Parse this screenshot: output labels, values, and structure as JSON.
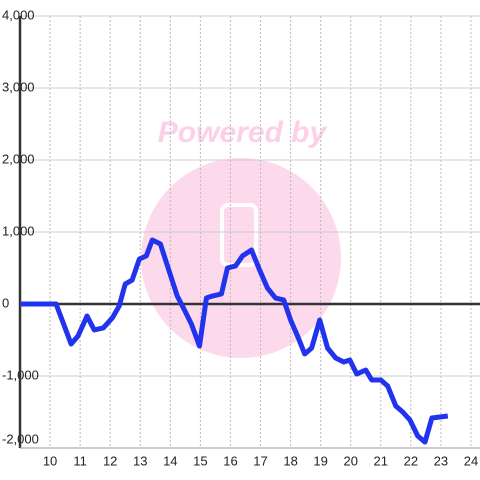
{
  "chart_data": {
    "type": "line",
    "watermark": "Powered by",
    "x": [
      9,
      10.2,
      10.7,
      10.93,
      11.23,
      11.47,
      11.77,
      12.07,
      12.3,
      12.5,
      12.73,
      12.97,
      13.2,
      13.4,
      13.67,
      13.97,
      14.23,
      14.47,
      14.7,
      14.97,
      15.2,
      15.4,
      15.7,
      15.9,
      16.17,
      16.4,
      16.7,
      16.97,
      17.23,
      17.5,
      17.77,
      18,
      18.23,
      18.47,
      18.7,
      18.97,
      19.23,
      19.5,
      19.77,
      19.97,
      20.2,
      20.5,
      20.7,
      21,
      21.23,
      21.5,
      21.73,
      21.97,
      22.23,
      22.47,
      22.7,
      23.23
    ],
    "series": [
      {
        "color": "#2233ee",
        "values": [
          0,
          0,
          -556,
          -444,
          -167,
          -361,
          -333,
          -194,
          -28,
          278,
          333,
          625,
          667,
          889,
          833,
          444,
          111,
          -83,
          -278,
          -583,
          83,
          111,
          139,
          500,
          528,
          667,
          750,
          472,
          222,
          83,
          56,
          -222,
          -444,
          -694,
          -611,
          -222,
          -611,
          -750,
          -806,
          -778,
          -972,
          -917,
          -1056,
          -1056,
          -1139,
          -1417,
          -1500,
          -1611,
          -1833,
          -1917,
          -1583,
          -1556
        ]
      }
    ],
    "xlim": [
      9,
      24.3
    ],
    "xticks": [
      10,
      11,
      12,
      13,
      14,
      15,
      16,
      17,
      18,
      19,
      20,
      21,
      22,
      23,
      24
    ],
    "ylim": [
      -2000,
      4000
    ],
    "yticks": [
      {
        "value": -2000,
        "label": "-2,000"
      },
      {
        "value": -1000,
        "label": "-1,000"
      },
      0,
      {
        "value": 1000,
        "label": "1,000"
      },
      {
        "value": 2000,
        "label": "2,000"
      },
      {
        "value": 3000,
        "label": "3,000"
      },
      {
        "value": 4000,
        "label": "4,000"
      }
    ],
    "grid": true
  }
}
